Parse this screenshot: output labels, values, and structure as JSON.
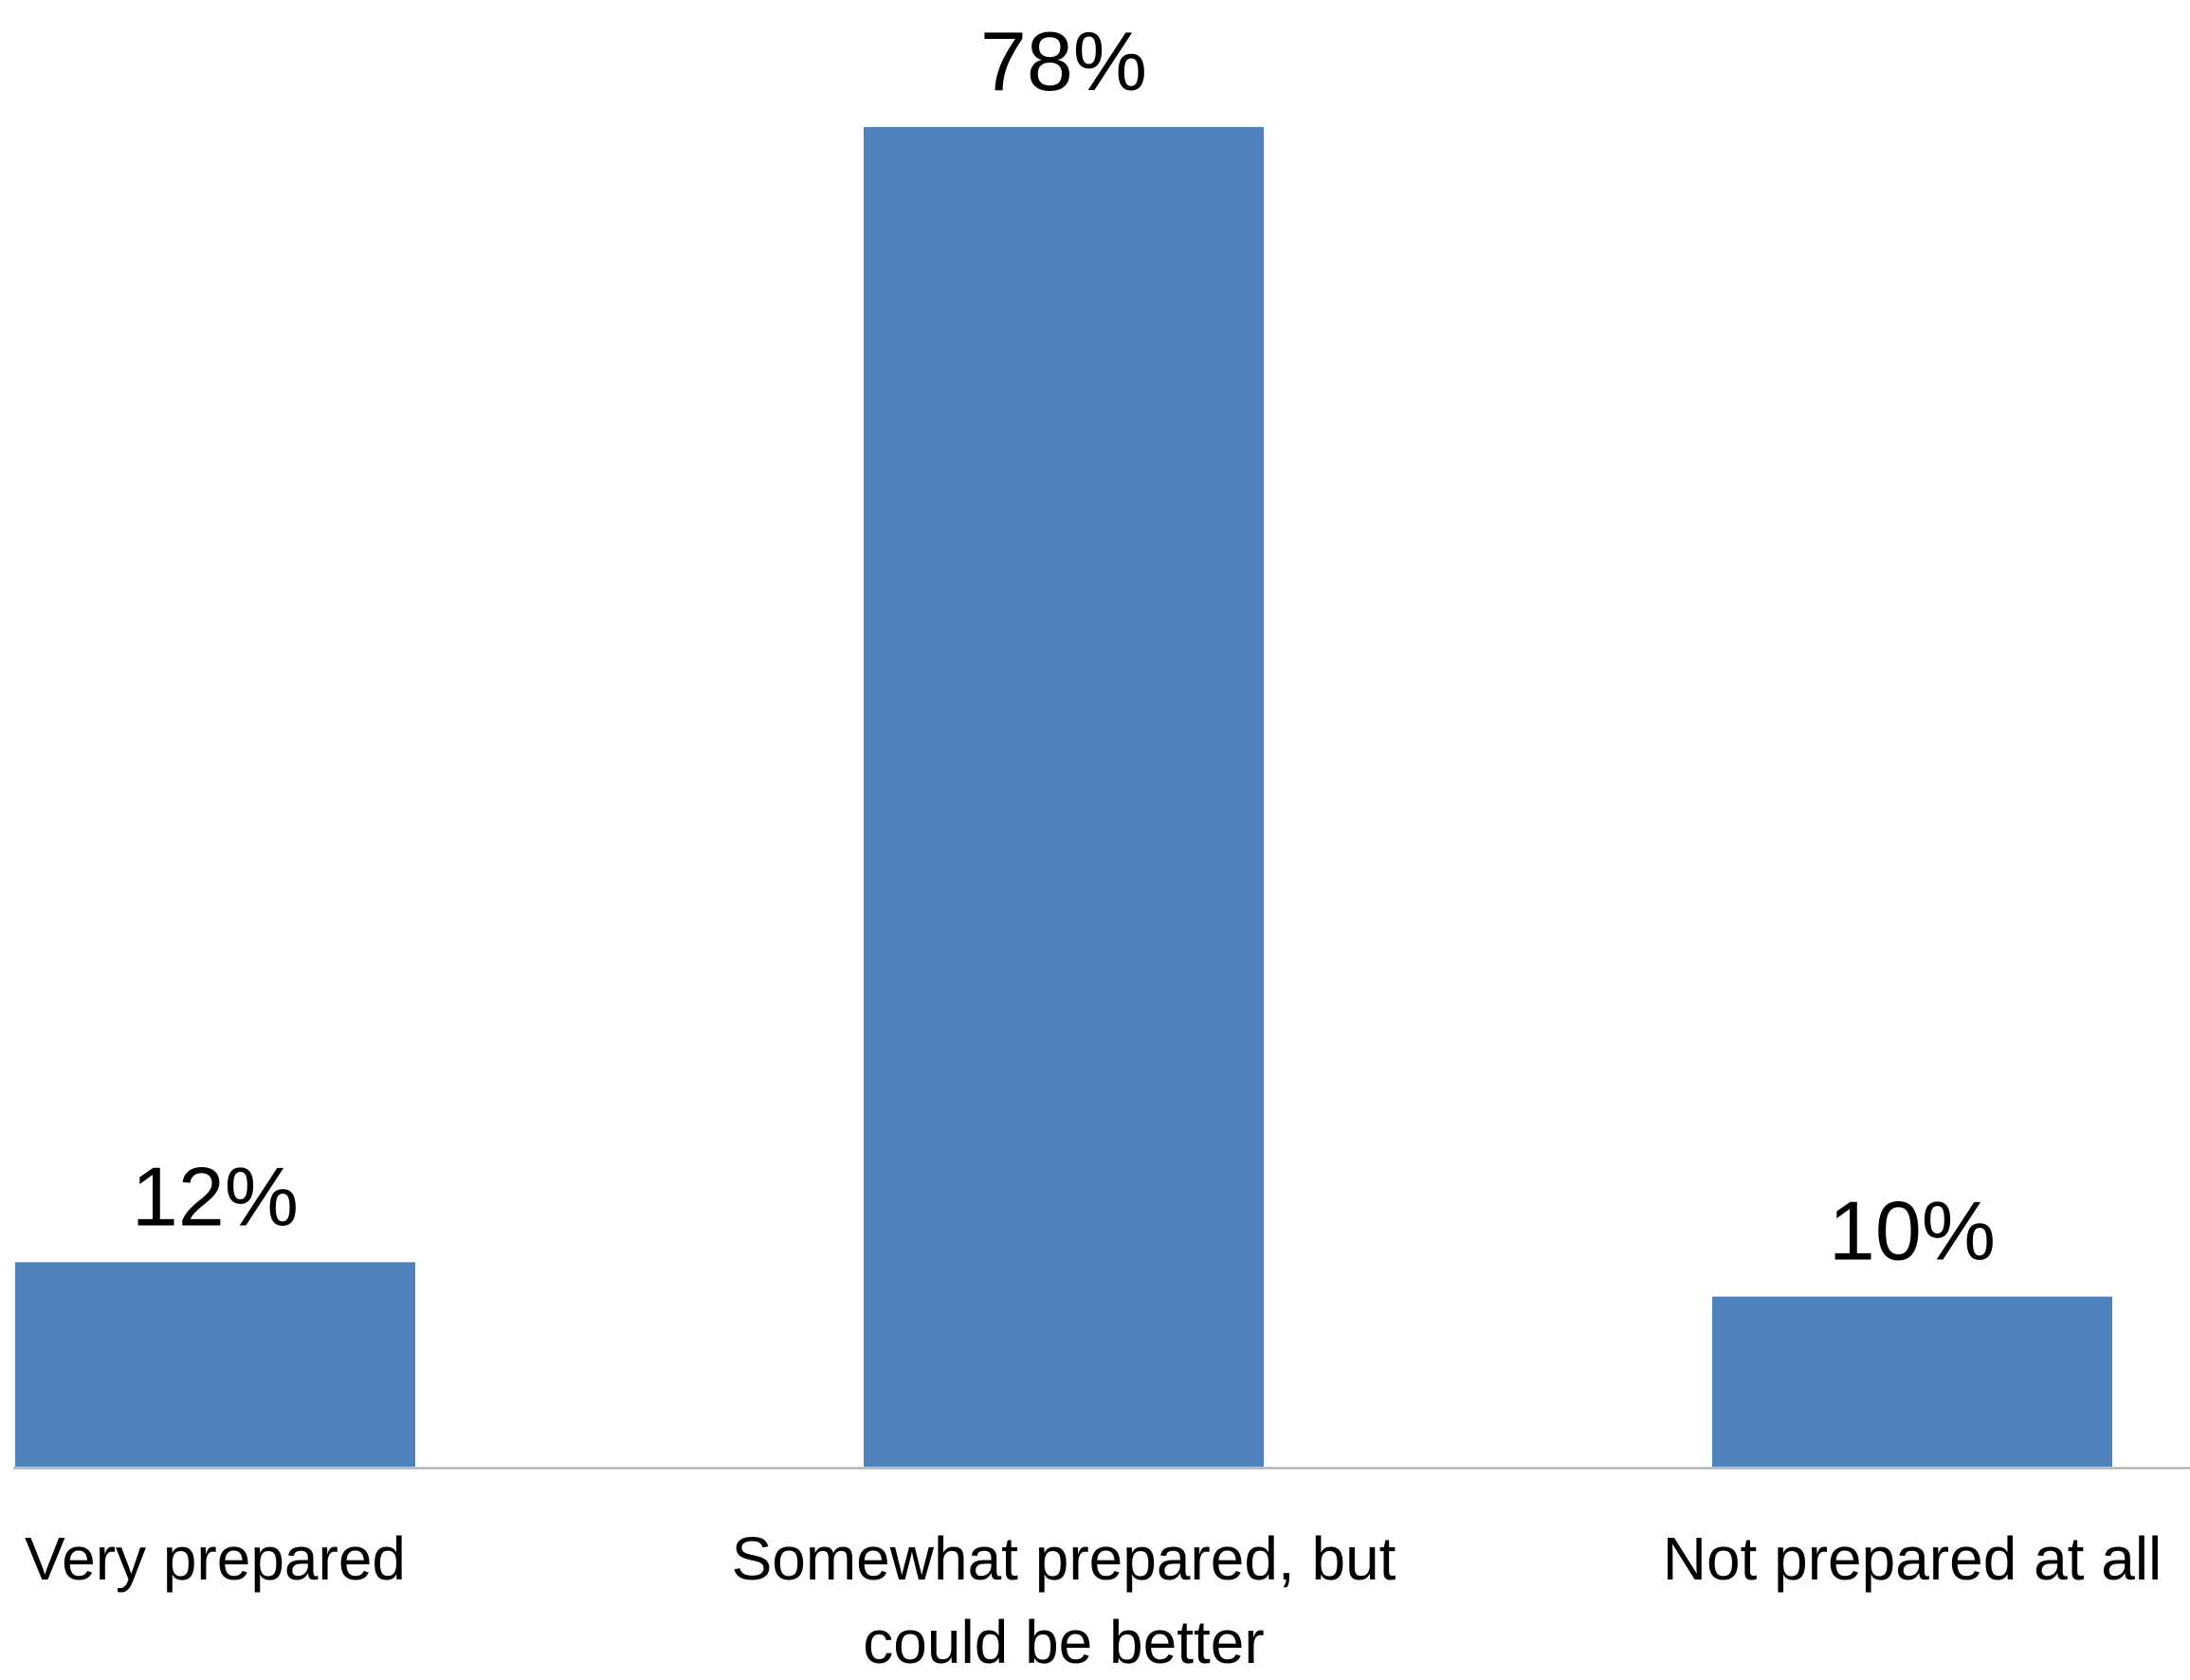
{
  "chart_data": {
    "type": "bar",
    "title": "",
    "xlabel": "",
    "ylabel": "",
    "categories": [
      [
        "Very prepared"
      ],
      [
        "Somewhat prepared, but",
        "could be better"
      ],
      [
        "Not prepared at all"
      ]
    ],
    "values": [
      12,
      78,
      10
    ],
    "data_labels": [
      "12%",
      "78%",
      "10%"
    ],
    "unit": "%",
    "ylim": [
      0,
      78
    ],
    "grid": false,
    "legend": "none",
    "colors": {
      "bar": "#4F81BD",
      "axis": "#A6A6A6",
      "text": "#000000"
    }
  }
}
